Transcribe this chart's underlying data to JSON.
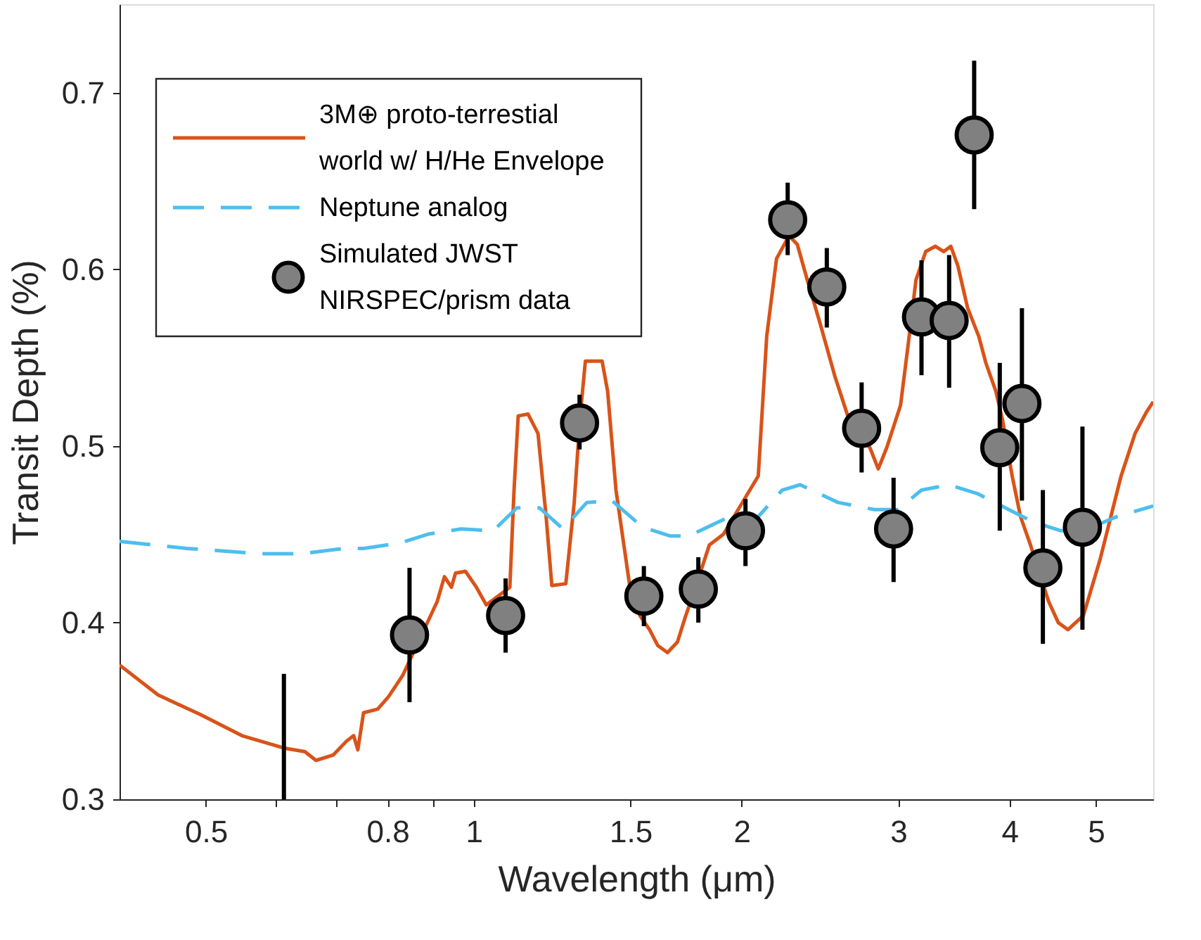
{
  "chart_data": {
    "type": "line",
    "xlabel": "Wavelength (μm)",
    "ylabel": "Transit Depth (%)",
    "log": "x",
    "xlim": [
      0.4,
      5.8
    ],
    "ylim": [
      0.3,
      0.75
    ],
    "xticks": [
      0.5,
      {
        "value": 0.6,
        "label": null
      },
      {
        "value": 0.7,
        "label": null
      },
      0.8,
      {
        "value": 0.9,
        "label": null
      },
      1,
      1.5,
      2,
      3,
      4,
      5
    ],
    "yticks": [
      0.3,
      0.4,
      0.5,
      0.6,
      0.7
    ],
    "grid": false,
    "legend": "top left",
    "series": [
      {
        "name": "3M⊕ proto-terrestial world w/ H/He Envelope",
        "color": "#d95319",
        "line_style": "solid",
        "x": [
          0.4,
          0.442,
          0.493,
          0.549,
          0.612,
          0.646,
          0.665,
          0.695,
          0.72,
          0.733,
          0.741,
          0.752,
          0.78,
          0.802,
          0.832,
          0.91,
          0.927,
          0.944,
          0.954,
          0.979,
          1.007,
          1.033,
          1.098,
          1.11,
          1.122,
          1.151,
          1.181,
          1.206,
          1.224,
          1.269,
          1.297,
          1.316,
          1.335,
          1.394,
          1.414,
          1.445,
          1.498,
          1.537,
          1.576,
          1.61,
          1.651,
          1.694,
          1.731,
          1.775,
          1.84,
          1.908,
          2.088,
          2.134,
          2.189,
          2.261,
          2.31,
          2.37,
          2.448,
          2.547,
          2.64,
          2.787,
          2.848,
          2.911,
          3.017,
          3.073,
          3.14,
          3.22,
          3.302,
          3.374,
          3.436,
          3.499,
          3.589,
          3.694,
          3.762,
          3.86,
          3.927,
          4.027,
          4.115,
          4.222,
          4.425,
          4.537,
          4.653,
          4.842,
          5.057,
          5.338,
          5.534,
          5.697,
          5.8
        ],
        "values": [
          0.376,
          0.359,
          0.348,
          0.336,
          0.329,
          0.327,
          0.322,
          0.325,
          0.333,
          0.336,
          0.328,
          0.349,
          0.351,
          0.358,
          0.37,
          0.412,
          0.426,
          0.42,
          0.428,
          0.429,
          0.42,
          0.41,
          0.42,
          0.475,
          0.517,
          0.518,
          0.507,
          0.46,
          0.421,
          0.422,
          0.468,
          0.515,
          0.548,
          0.548,
          0.531,
          0.475,
          0.42,
          0.404,
          0.396,
          0.387,
          0.383,
          0.389,
          0.404,
          0.42,
          0.444,
          0.45,
          0.483,
          0.562,
          0.606,
          0.619,
          0.614,
          0.594,
          0.57,
          0.539,
          0.515,
          0.499,
          0.487,
          0.499,
          0.523,
          0.555,
          0.594,
          0.61,
          0.613,
          0.61,
          0.613,
          0.602,
          0.578,
          0.562,
          0.547,
          0.531,
          0.515,
          0.483,
          0.46,
          0.444,
          0.412,
          0.4,
          0.396,
          0.404,
          0.436,
          0.483,
          0.507,
          0.519,
          0.525
        ]
      },
      {
        "name": "Neptune analog",
        "color": "#4dbeee",
        "line_style": "dashed",
        "x": [
          0.4,
          0.476,
          0.576,
          0.641,
          0.715,
          0.752,
          0.826,
          0.888,
          0.968,
          1.052,
          1.118,
          1.185,
          1.26,
          1.34,
          1.43,
          1.548,
          1.663,
          1.744,
          1.921,
          2.088,
          2.221,
          2.327,
          2.566,
          2.818,
          2.996,
          3.185,
          3.423,
          3.681,
          3.956,
          4.251,
          4.569,
          4.842,
          5.28,
          5.8
        ],
        "values": [
          0.446,
          0.442,
          0.439,
          0.439,
          0.442,
          0.442,
          0.445,
          0.45,
          0.453,
          0.452,
          0.465,
          0.465,
          0.453,
          0.468,
          0.469,
          0.454,
          0.449,
          0.449,
          0.459,
          0.46,
          0.475,
          0.478,
          0.468,
          0.464,
          0.464,
          0.475,
          0.478,
          0.473,
          0.465,
          0.457,
          0.452,
          0.452,
          0.46,
          0.466
        ]
      },
      {
        "color": "#000000",
        "line_style": "solid",
        "x": [
          0.612,
          0.612
        ],
        "values": [
          0.3,
          0.371
        ]
      },
      {
        "name": "Simulated JWST NIRSPEC/prism data",
        "type": "scatter",
        "color": "#808080",
        "marker": "circle",
        "x": [
          0.847,
          1.086,
          1.315,
          1.553,
          1.788,
          2.02,
          2.253,
          2.493,
          2.728,
          2.963,
          3.185,
          3.421,
          3.65,
          3.9,
          4.13,
          4.36,
          4.83
        ],
        "values": [
          0.393,
          0.404,
          0.513,
          0.415,
          0.419,
          0.452,
          0.628,
          0.59,
          0.51,
          0.453,
          0.573,
          0.571,
          0.676,
          0.499,
          0.524,
          0.431,
          0.454
        ],
        "errors": [
          [
            0.355,
            0.431
          ],
          [
            0.383,
            0.425
          ],
          [
            0.498,
            0.529
          ],
          [
            0.398,
            0.432
          ],
          [
            0.4,
            0.437
          ],
          [
            0.432,
            0.47
          ],
          [
            0.608,
            0.649
          ],
          [
            0.567,
            0.612
          ],
          [
            0.485,
            0.536
          ],
          [
            0.423,
            0.482
          ],
          [
            0.54,
            0.605
          ],
          [
            0.533,
            0.608
          ],
          [
            0.634,
            0.718
          ],
          [
            0.452,
            0.547
          ],
          [
            0.469,
            0.578
          ],
          [
            0.388,
            0.475
          ],
          [
            0.396,
            0.511
          ]
        ]
      }
    ]
  }
}
